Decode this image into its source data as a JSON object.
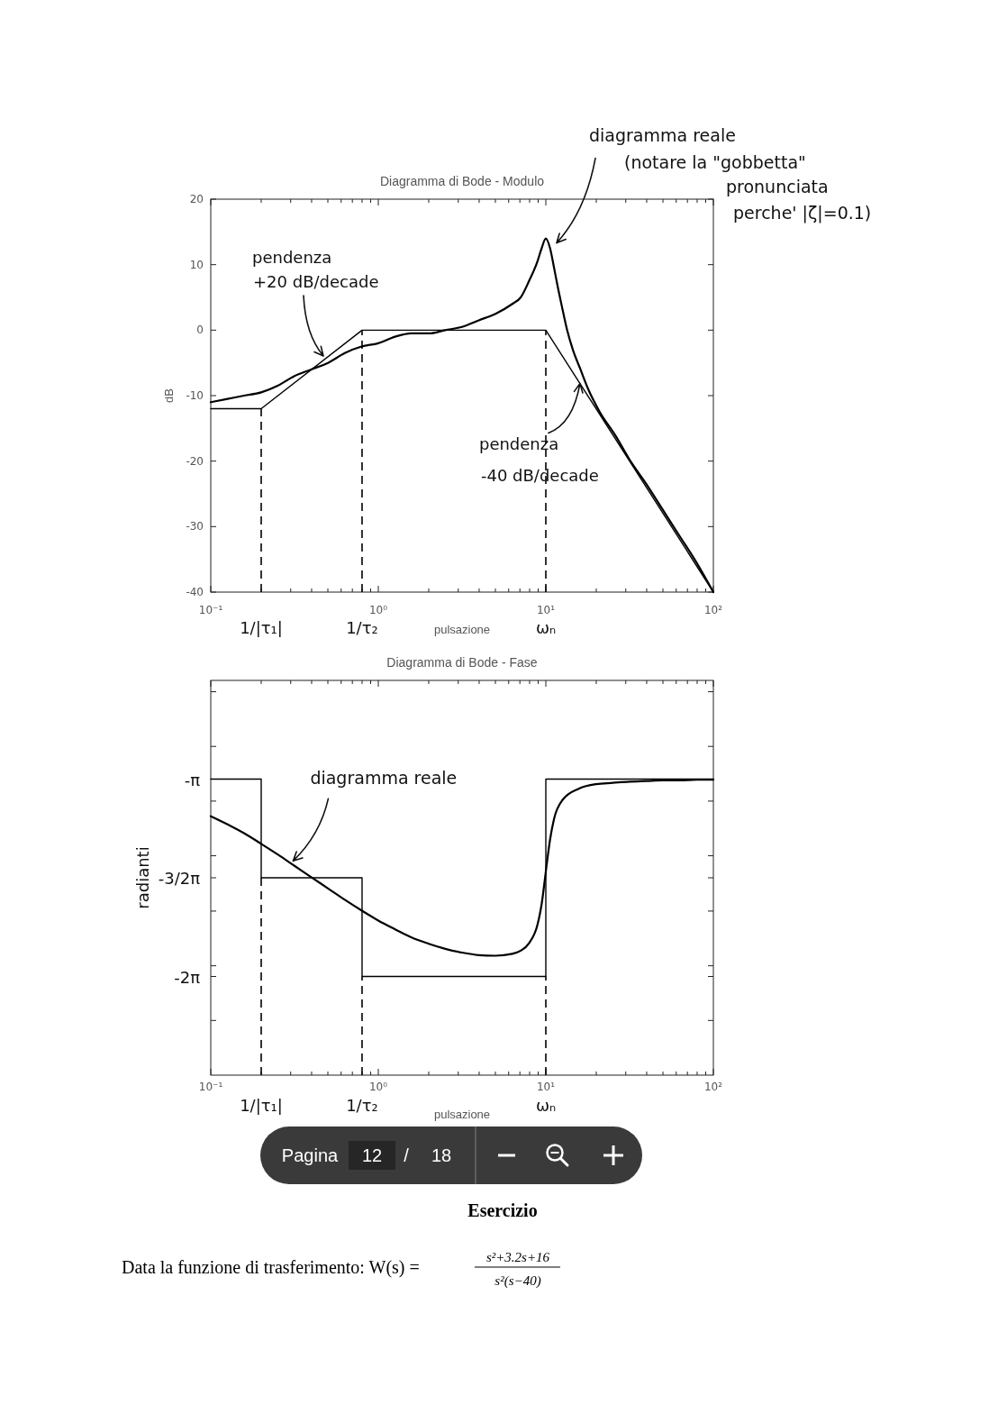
{
  "chart_data": [
    {
      "type": "line",
      "title": "Diagramma di Bode - Modulo",
      "xlabel": "pulsazione",
      "ylabel": "dB",
      "log": "x",
      "xlim": [
        0.1,
        100
      ],
      "xticks": [
        {
          "value": 0.1,
          "label": "10⁻¹"
        },
        {
          "value": 0.2,
          "label": null
        },
        {
          "value": 0.3,
          "label": null
        },
        {
          "value": 0.4,
          "label": null
        },
        {
          "value": 0.5,
          "label": null
        },
        {
          "value": 0.6,
          "label": null
        },
        {
          "value": 0.7,
          "label": null
        },
        {
          "value": 0.8,
          "label": null
        },
        {
          "value": 0.9,
          "label": null
        },
        {
          "value": 1,
          "label": "10⁰"
        },
        {
          "value": 2,
          "label": null
        },
        {
          "value": 3,
          "label": null
        },
        {
          "value": 4,
          "label": null
        },
        {
          "value": 5,
          "label": null
        },
        {
          "value": 6,
          "label": null
        },
        {
          "value": 7,
          "label": null
        },
        {
          "value": 8,
          "label": null
        },
        {
          "value": 9,
          "label": null
        },
        {
          "value": 10,
          "label": "10¹"
        },
        {
          "value": 20,
          "label": null
        },
        {
          "value": 30,
          "label": null
        },
        {
          "value": 40,
          "label": null
        },
        {
          "value": 50,
          "label": null
        },
        {
          "value": 60,
          "label": null
        },
        {
          "value": 70,
          "label": null
        },
        {
          "value": 80,
          "label": null
        },
        {
          "value": 90,
          "label": null
        },
        {
          "value": 100,
          "label": "10²"
        }
      ],
      "ylim": [
        -40,
        20
      ],
      "yticks": [
        -40,
        -30,
        -20,
        -10,
        0,
        10,
        20
      ],
      "x": [
        0.1,
        0.126,
        0.158,
        0.2,
        0.251,
        0.316,
        0.398,
        0.501,
        0.631,
        0.794,
        1,
        1.26,
        1.58,
        2,
        2.51,
        3.16,
        3.98,
        5.01,
        6.31,
        7.08,
        7.94,
        8.91,
        9.44,
        10,
        10.6,
        11.2,
        11.7,
        12.5,
        13.4,
        14.5,
        16.1,
        17.9,
        21,
        25.9,
        32,
        39.8,
        50.1,
        63.1,
        79.4,
        100
      ],
      "series": [
        {
          "color": "#000000",
          "x": [
            0.1,
            0.2,
            0.8,
            10,
            100
          ],
          "values": [
            -12,
            -12,
            0,
            0,
            -40
          ]
        },
        {
          "color": "#000000",
          "values": [
            -11,
            -10.5,
            -10,
            -9.5,
            -8.5,
            -7,
            -6,
            -5,
            -3.5,
            -2.5,
            -2,
            -1,
            -0.5,
            -0.5,
            0,
            0.5,
            1.5,
            2.5,
            4,
            5,
            7.5,
            10.5,
            12.5,
            14,
            12.5,
            9.5,
            7,
            3.5,
            0,
            -3,
            -6,
            -9,
            -12.5,
            -16,
            -20,
            -23.5,
            -27.5,
            -31.5,
            -35.5,
            -40
          ]
        }
      ],
      "ref_lines": [
        {
          "axis": "x",
          "value": 0.2,
          "label": "1/|τ₁|",
          "line_style": "dashed",
          "color": "#000000"
        },
        {
          "axis": "x",
          "value": 0.8,
          "label": "1/τ₂",
          "line_style": "dashed",
          "color": "#000000"
        },
        {
          "axis": "x",
          "value": 10,
          "label": "ωₙ",
          "line_style": "dashed",
          "color": "#000000"
        }
      ],
      "annotations": [
        {
          "text": "diagramma reale (notare la \"gobbetta\" pronunciata perche' |ζ|=0.1)",
          "x": 10,
          "y": 14
        },
        {
          "text": "pendenza +20 dB/decade",
          "x": 0.47,
          "y": -4.5
        },
        {
          "text": "pendenza -40 dB/decade",
          "x": 16,
          "y": -8
        }
      ]
    },
    {
      "type": "line",
      "title": "Diagramma di Bode - Fase",
      "xlabel": "pulsazione",
      "ylabel": "radianti",
      "log": "x",
      "xlim": [
        0.1,
        100
      ],
      "xticks": [
        {
          "value": 0.1,
          "label": "10⁻¹"
        },
        {
          "value": 0.2,
          "label": null
        },
        {
          "value": 0.3,
          "label": null
        },
        {
          "value": 0.4,
          "label": null
        },
        {
          "value": 0.5,
          "label": null
        },
        {
          "value": 0.6,
          "label": null
        },
        {
          "value": 0.7,
          "label": null
        },
        {
          "value": 0.8,
          "label": null
        },
        {
          "value": 0.9,
          "label": null
        },
        {
          "value": 1,
          "label": "10⁰"
        },
        {
          "value": 2,
          "label": null
        },
        {
          "value": 3,
          "label": null
        },
        {
          "value": 4,
          "label": null
        },
        {
          "value": 5,
          "label": null
        },
        {
          "value": 6,
          "label": null
        },
        {
          "value": 7,
          "label": null
        },
        {
          "value": 8,
          "label": null
        },
        {
          "value": 9,
          "label": null
        },
        {
          "value": 10,
          "label": "10¹"
        },
        {
          "value": 20,
          "label": null
        },
        {
          "value": 30,
          "label": null
        },
        {
          "value": 40,
          "label": null
        },
        {
          "value": 50,
          "label": null
        },
        {
          "value": 60,
          "label": null
        },
        {
          "value": 70,
          "label": null
        },
        {
          "value": 80,
          "label": null
        },
        {
          "value": 90,
          "label": null
        },
        {
          "value": 100,
          "label": "10²"
        }
      ],
      "ylim": [
        -7.85,
        -1.57
      ],
      "yticks": [
        {
          "value": -6.98,
          "label": null
        },
        {
          "value": -6.28,
          "label": "-2π"
        },
        {
          "value": -6.11,
          "label": null
        },
        {
          "value": -5.24,
          "label": null
        },
        {
          "value": -4.71,
          "label": "-3/2π"
        },
        {
          "value": -4.36,
          "label": null
        },
        {
          "value": -3.49,
          "label": null
        },
        {
          "value": -3.14,
          "label": "-π"
        },
        {
          "value": -2.62,
          "label": null
        },
        {
          "value": -1.75,
          "label": null
        }
      ],
      "x": [
        0.1,
        0.126,
        0.158,
        0.2,
        0.251,
        0.316,
        0.398,
        0.501,
        0.631,
        0.794,
        1,
        1.26,
        1.58,
        2,
        2.51,
        3.16,
        3.98,
        5.01,
        6.31,
        7.08,
        7.94,
        8.91,
        9.44,
        10,
        10.6,
        11.2,
        12.6,
        15.8,
        20,
        25.1,
        31.6,
        39.8,
        50.1,
        63.1,
        79.4,
        100
      ],
      "series": [
        {
          "type": "step",
          "color": "#000000",
          "x": [
            0.1,
            0.2,
            0.8,
            10,
            100
          ],
          "values": [
            -3.14,
            -4.71,
            -6.28,
            -3.14,
            -3.14
          ]
        },
        {
          "color": "#000000",
          "values": [
            -3.73,
            -3.86,
            -4,
            -4.17,
            -4.34,
            -4.52,
            -4.7,
            -4.88,
            -5.06,
            -5.23,
            -5.39,
            -5.53,
            -5.66,
            -5.76,
            -5.84,
            -5.9,
            -5.94,
            -5.95,
            -5.92,
            -5.87,
            -5.75,
            -5.46,
            -5.13,
            -4.61,
            -4.1,
            -3.77,
            -3.47,
            -3.29,
            -3.22,
            -3.2,
            -3.18,
            -3.17,
            -3.16,
            -3.16,
            -3.15,
            -3.15
          ]
        }
      ],
      "ref_lines": [
        {
          "axis": "x",
          "value": 0.2,
          "label": "1/|τ₁|",
          "line_style": "dashed",
          "color": "#000000"
        },
        {
          "axis": "x",
          "value": 0.8,
          "label": "1/τ₂",
          "line_style": "dashed",
          "color": "#000000"
        },
        {
          "axis": "x",
          "value": 10,
          "label": "ωₙ",
          "line_style": "dashed",
          "color": "#000000"
        }
      ],
      "annotations": [
        {
          "text": "diagramma reale",
          "x": 0.31,
          "y": -4.5
        },
        "Pagina",
        "12",
        "/",
        "18",
        "Esercizio",
        "Data la funzione di trasferimento: W(s) =",
        "s²+3.2s+16",
        "s²(s−40)"
      ]
    }
  ]
}
